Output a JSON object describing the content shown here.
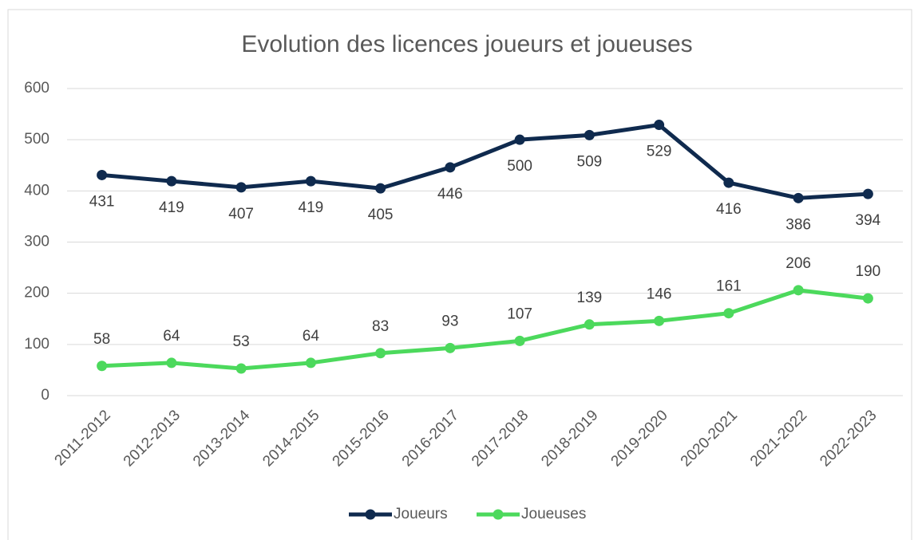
{
  "chart_data": {
    "type": "line",
    "title": "Evolution des licences joueurs et joueuses",
    "categories": [
      "2011-2012",
      "2012-2013",
      "2013-2014",
      "2014-2015",
      "2015-2016",
      "2016-2017",
      "2017-2018",
      "2018-2019",
      "2019-2020",
      "2020-2021",
      "2021-2022",
      "2022-2023"
    ],
    "series": [
      {
        "name": "Joueurs",
        "color": "#0f2a4e",
        "values": [
          431,
          419,
          407,
          419,
          405,
          446,
          500,
          509,
          529,
          416,
          386,
          394
        ],
        "label_position": "below"
      },
      {
        "name": "Joueuses",
        "color": "#4cd95c",
        "values": [
          58,
          64,
          53,
          64,
          83,
          93,
          107,
          139,
          146,
          161,
          206,
          190
        ],
        "label_position": "above"
      }
    ],
    "ylim": [
      0,
      600
    ],
    "yticks": [
      0,
      100,
      200,
      300,
      400,
      500,
      600
    ],
    "grid": true,
    "legend": "bottom"
  }
}
